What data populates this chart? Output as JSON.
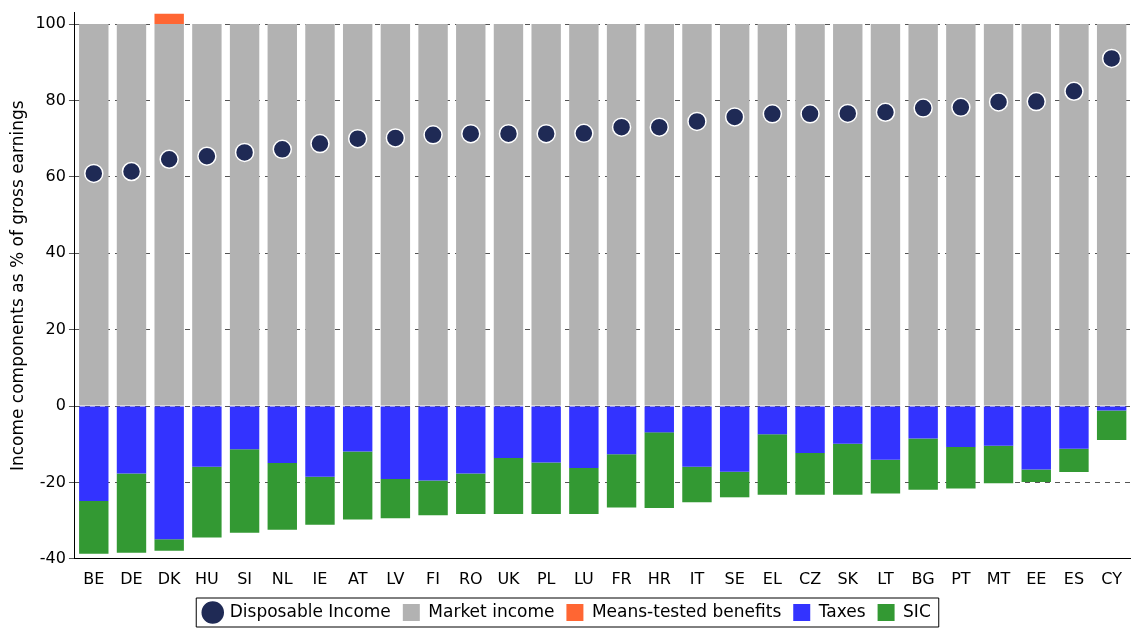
{
  "chart_data": {
    "type": "bar",
    "stacked": true,
    "ylabel": "Income components as % of gross earnings",
    "categories": [
      "BE",
      "DE",
      "DK",
      "HU",
      "SI",
      "NL",
      "IE",
      "AT",
      "LV",
      "FI",
      "RO",
      "UK",
      "PL",
      "LU",
      "FR",
      "HR",
      "IT",
      "SE",
      "EL",
      "CZ",
      "SK",
      "LT",
      "BG",
      "PT",
      "MT",
      "EE",
      "ES",
      "CY"
    ],
    "ylim": [
      -40,
      103
    ],
    "yticks": [
      -40,
      -20,
      0,
      20,
      40,
      60,
      80,
      100
    ],
    "grid": "y",
    "legend": "bottom",
    "series": [
      {
        "name": "Disposable Income",
        "type": "scatter",
        "marker": "circle",
        "color": "#1f2a55",
        "x": [
          "BE",
          "DE",
          "DK",
          "HU",
          "SI",
          "NL",
          "IE",
          "AT",
          "LV",
          "FI",
          "RO",
          "UK",
          "PL",
          "LU",
          "FR",
          "HR",
          "IT",
          "SE",
          "EL",
          "CZ",
          "SK",
          "LT",
          "BG",
          "PT",
          "MT",
          "EE",
          "ES",
          "CY"
        ],
        "values": [
          60.9,
          61.4,
          64.6,
          65.4,
          66.4,
          67.2,
          68.7,
          70.0,
          70.2,
          71.0,
          71.3,
          71.3,
          71.3,
          71.4,
          73.0,
          73.0,
          74.5,
          75.7,
          76.5,
          76.5,
          76.6,
          76.9,
          78.0,
          78.2,
          79.6,
          79.7,
          82.4,
          91.0
        ]
      },
      {
        "name": "Market income",
        "color": "#b2b2b2",
        "values": [
          100,
          100,
          100,
          100,
          100,
          100,
          100,
          100,
          100,
          100,
          100,
          100,
          100,
          100,
          100,
          100,
          100,
          100,
          100,
          100,
          100,
          100,
          100,
          100,
          100,
          100,
          100,
          100
        ]
      },
      {
        "name": "Means-tested benefits",
        "color": "#ff6633",
        "values": [
          0,
          0,
          2.7,
          0,
          0,
          0,
          0,
          0,
          0,
          0,
          0,
          0,
          0,
          0,
          0,
          0,
          0,
          0,
          0,
          0,
          0,
          0,
          0,
          0,
          0,
          0,
          0,
          0
        ]
      },
      {
        "name": "Taxes",
        "color": "#3333ff",
        "values": [
          -24.9,
          -17.7,
          -34.9,
          -15.9,
          -11.3,
          -14.9,
          -18.5,
          -11.9,
          -19.1,
          -19.5,
          -17.7,
          -13.6,
          -14.8,
          -16.2,
          -12.6,
          -6.9,
          -15.9,
          -17.2,
          -7.4,
          -12.3,
          -9.9,
          -14.1,
          -8.5,
          -10.7,
          -10.4,
          -16.6,
          -11.2,
          -1.2
        ]
      },
      {
        "name": "SIC",
        "color": "#339933",
        "values": [
          -13.8,
          -20.7,
          -3.0,
          -18.5,
          -21.9,
          -17.5,
          -12.6,
          -17.8,
          -10.3,
          -9.1,
          -10.6,
          -14.7,
          -13.5,
          -12.1,
          -14.0,
          -19.8,
          -9.3,
          -6.7,
          -15.8,
          -10.9,
          -13.3,
          -8.8,
          -13.4,
          -10.9,
          -9.8,
          -3.3,
          -6.1,
          -7.7
        ]
      }
    ]
  }
}
